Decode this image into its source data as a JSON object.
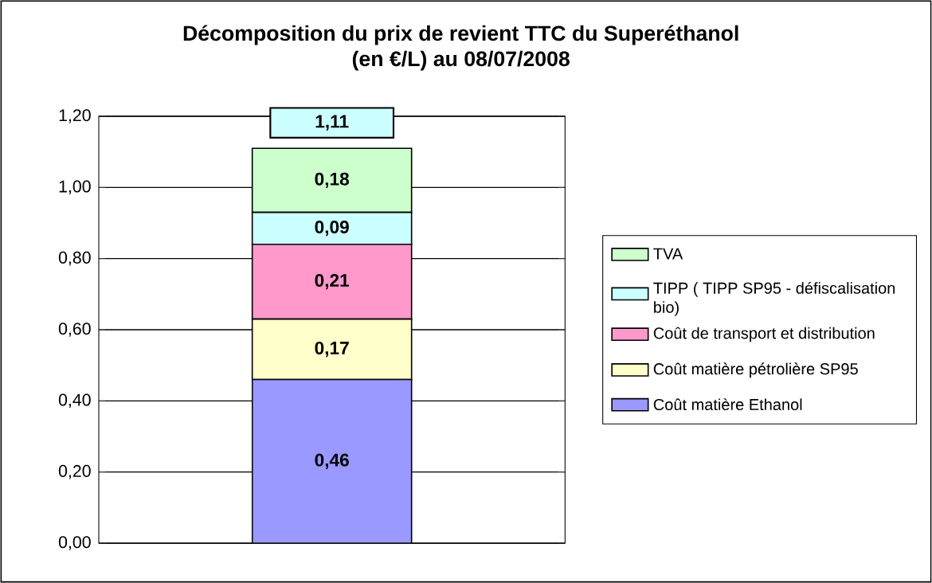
{
  "chart_data": {
    "type": "bar",
    "title": "Décomposition du prix de revient TTC du Superéthanol",
    "subtitle": "(en €/L) au 08/07/2008",
    "categories": [
      null
    ],
    "series": [
      {
        "name": "Coût matière Ethanol",
        "color": "#9999ff",
        "values": [
          0.46
        ],
        "value_labels": [
          "0,46"
        ]
      },
      {
        "name": "Coût matière pétrolière SP95",
        "color": "#ffffcc",
        "values": [
          0.17
        ],
        "value_labels": [
          "0,17"
        ]
      },
      {
        "name": "Coût de transport et distribution",
        "color": "#ff99cc",
        "values": [
          0.21
        ],
        "value_labels": [
          "0,21"
        ]
      },
      {
        "name": "TIPP ( TIPP SP95 - défiscalisation bio)",
        "color": "#ccffff",
        "values": [
          0.09
        ],
        "value_labels": [
          "0,09"
        ]
      },
      {
        "name": "TVA",
        "color": "#ccffcc",
        "values": [
          0.18
        ],
        "value_labels": [
          "0,18"
        ]
      }
    ],
    "stacked": true,
    "totals": [
      "1,11"
    ],
    "ylim": [
      0,
      1.2
    ],
    "yticks": [
      {
        "value": 0,
        "label": "0,00"
      },
      {
        "value": 0.2,
        "label": "0,20"
      },
      {
        "value": 0.4,
        "label": "0,40"
      },
      {
        "value": 0.6,
        "label": "0,60"
      },
      {
        "value": 0.8,
        "label": "0,80"
      },
      {
        "value": 1.0,
        "label": "1,00"
      },
      {
        "value": 1.2,
        "label": "1,20"
      }
    ],
    "grid": "y",
    "legend": "right"
  }
}
